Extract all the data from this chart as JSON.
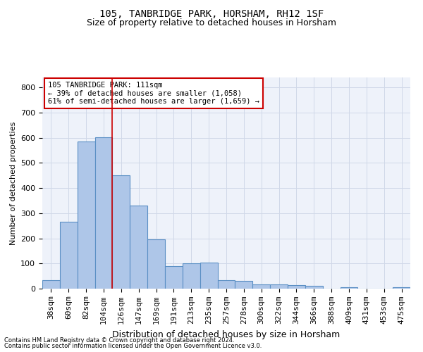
{
  "title": "105, TANBRIDGE PARK, HORSHAM, RH12 1SF",
  "subtitle": "Size of property relative to detached houses in Horsham",
  "xlabel": "Distribution of detached houses by size in Horsham",
  "ylabel": "Number of detached properties",
  "footer1": "Contains HM Land Registry data © Crown copyright and database right 2024.",
  "footer2": "Contains public sector information licensed under the Open Government Licence v3.0.",
  "categories": [
    "38sqm",
    "60sqm",
    "82sqm",
    "104sqm",
    "126sqm",
    "147sqm",
    "169sqm",
    "191sqm",
    "213sqm",
    "235sqm",
    "257sqm",
    "278sqm",
    "300sqm",
    "322sqm",
    "344sqm",
    "366sqm",
    "388sqm",
    "409sqm",
    "431sqm",
    "453sqm",
    "475sqm"
  ],
  "values": [
    35,
    265,
    585,
    602,
    452,
    330,
    195,
    90,
    102,
    105,
    35,
    32,
    17,
    17,
    13,
    10,
    0,
    5,
    0,
    0,
    7
  ],
  "bar_color": "#aec6e8",
  "bar_edge_color": "#5a8fc4",
  "grid_color": "#d0d8e8",
  "background_color": "#eef2fa",
  "annotation_text": "105 TANBRIDGE PARK: 111sqm\n← 39% of detached houses are smaller (1,058)\n61% of semi-detached houses are larger (1,659) →",
  "annotation_box_color": "#ffffff",
  "annotation_box_edge": "#cc0000",
  "vline_x": 3.5,
  "vline_color": "#cc0000",
  "ylim": [
    0,
    840
  ],
  "yticks": [
    0,
    100,
    200,
    300,
    400,
    500,
    600,
    700,
    800
  ],
  "title_fontsize": 10,
  "subtitle_fontsize": 9,
  "ylabel_fontsize": 8,
  "xlabel_fontsize": 9,
  "tick_fontsize": 8,
  "annot_fontsize": 7.5,
  "footer_fontsize": 6
}
